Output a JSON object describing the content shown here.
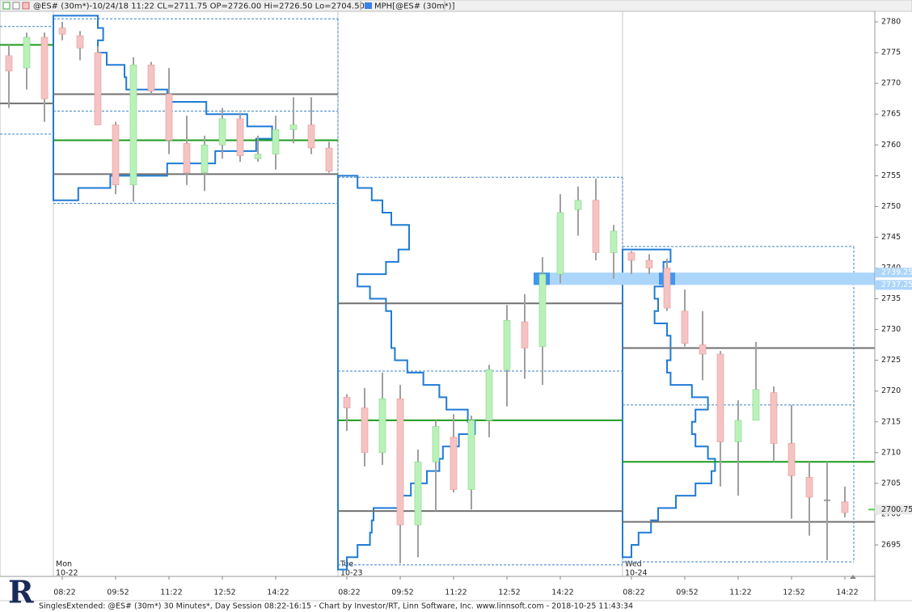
{
  "logo": "R",
  "chart_data": {
    "type": "candlestick",
    "title": "@ES# (30m*)-10/24/18 11:22 CL=2711.75 OP=2726.00 Hi=2726.50 Lo=2704.50",
    "legend": "MPH[@ES# (30m*)]",
    "legend_color": "#3c82e6",
    "footer": "SinglesExtended: @ES# (30m*) 30 Minutes*, Day Session 08:22-16:15 - Chart by Investor/RT, Linn Software, Inc. www.linnsoft.com - 2018-10-25 11:43:34",
    "ylim": [
      2689.88,
      2781.71
    ],
    "yticks": [
      2695,
      2700,
      2705,
      2710,
      2715,
      2720,
      2725,
      2730,
      2735,
      2740,
      2745,
      2750,
      2755,
      2760,
      2765,
      2770,
      2775,
      2780
    ],
    "up_color": "#b9f2b9",
    "down_color": "#f6c3c3",
    "wick_color": "#a0a0a0",
    "profile_color": "#1f7bd6",
    "poc_color": "#1c9a1c",
    "va_color": "#707070",
    "range_color": "#3c82c8",
    "sessions": [
      {
        "categories": [
          null,
          null,
          null
        ],
        "open": [
          2774.5,
          2772.5,
          2777.5
        ],
        "high": [
          2776.25,
          2778.25,
          2778.25
        ],
        "low": [
          2766,
          2769,
          2763.75
        ],
        "close": [
          2772,
          2777.5,
          2767.5
        ],
        "range": [
          2779.25,
          2761.75
        ],
        "poc": 2776.25,
        "val": 2766.75
      },
      {
        "day": "Mon",
        "date": "10-22",
        "categories": [
          "08:22",
          null,
          null,
          "09:52",
          null,
          null,
          "11:22",
          null,
          null,
          "12:52",
          null,
          null,
          "14:22",
          null,
          null,
          null
        ],
        "open": [
          2779,
          2777.75,
          2775,
          2763.25,
          2753.5,
          2773,
          2768.25,
          2760.25,
          2755.5,
          2760,
          2764.25,
          2757.75,
          2758.5,
          2762.5,
          2763.25,
          2759.5
        ],
        "high": [
          2780,
          2778.5,
          2776,
          2763.75,
          2774.25,
          2773.5,
          2772.5,
          2764.75,
          2761.5,
          2766,
          2765.25,
          2761.5,
          2764.75,
          2767.75,
          2767.75,
          2760.5
        ],
        "low": [
          2777,
          2773.75,
          2763.25,
          2752,
          2750.75,
          2768.25,
          2758.5,
          2753.5,
          2752.5,
          2757.75,
          2757.25,
          2757.25,
          2756,
          2760.25,
          2758.5,
          2755.5
        ],
        "close": [
          2778,
          2775.75,
          2763.25,
          2753.5,
          2773,
          2768.75,
          2760.75,
          2755.5,
          2760,
          2764.25,
          2758.25,
          2758.5,
          2762.5,
          2763.25,
          2759.5,
          2755.75
        ],
        "range": [
          2780.5,
          2750.5
        ],
        "mid": 2765.5,
        "poc": 2760.75,
        "vah": 2768.25,
        "val": 2755.25,
        "profile": {
          "prices": [
            2779,
            2777,
            2775,
            2773,
            2771,
            2769,
            2767,
            2765,
            2763,
            2761,
            2759,
            2757,
            2755,
            2753,
            2751
          ],
          "widths": [
            2.5,
            2.8,
            2.5,
            3,
            4,
            4.1,
            6.4,
            8.6,
            10.9,
            12.3,
            11.4,
            9.1,
            6.4,
            3.2,
            1.4
          ]
        }
      },
      {
        "day": "Tue",
        "date": "10-23",
        "categories": [
          "08:22",
          null,
          null,
          "09:52",
          null,
          null,
          "11:22",
          null,
          null,
          "12:52",
          null,
          null,
          "14:22",
          null,
          null,
          null
        ],
        "open": [
          2719,
          2717.25,
          2710,
          2718.75,
          2698.25,
          2708.5,
          2712.5,
          2704,
          2715.25,
          2723.5,
          2731.25,
          2727.25,
          2739,
          2749.5,
          2751,
          2742.5
        ],
        "high": [
          2719.5,
          2720.5,
          2723,
          2721,
          2710.5,
          2715.25,
          2716.25,
          2716,
          2724.25,
          2734,
          2735.75,
          2741.75,
          2752,
          2753.25,
          2754.5,
          2747
        ],
        "low": [
          2713.5,
          2707.75,
          2708,
          2692,
          2693,
          2700.5,
          2703.5,
          2700.75,
          2712.5,
          2717.5,
          2722,
          2721,
          2737.5,
          2745.25,
          2741.25,
          2738.25
        ],
        "close": [
          2717.25,
          2710,
          2718.75,
          2698.25,
          2708.5,
          2714.25,
          2704,
          2715.25,
          2723.5,
          2731.5,
          2727,
          2739,
          2749,
          2751,
          2742.5,
          2746
        ],
        "range": [
          2754.75,
          2691.75
        ],
        "mid": 2723.25,
        "poc": 2715.25,
        "vah": 2734.25,
        "val": 2700.5,
        "profile": {
          "prices": [
            2753,
            2751,
            2749,
            2747,
            2745,
            2743,
            2741,
            2739,
            2737,
            2735,
            2733,
            2731,
            2729,
            2727,
            2725,
            2723,
            2721,
            2719,
            2717,
            2715,
            2713,
            2711,
            2709,
            2707,
            2705,
            2703,
            2701,
            2699,
            2697,
            2695,
            2693,
            2691
          ],
          "widths": [
            1.1,
            1.9,
            2.5,
            3,
            4,
            4,
            3.4,
            2.7,
            1.1,
            1.8,
            2.7,
            3,
            3,
            3,
            3.2,
            3.9,
            4.8,
            5.7,
            6.1,
            7.3,
            7.7,
            6.8,
            5.9,
            5.7,
            5,
            4.1,
            3.6,
            2,
            1.9,
            1.8,
            1.1,
            0.5
          ]
        }
      },
      {
        "day": "Wed",
        "date": "10-24",
        "categories": [
          "08:22",
          null,
          null,
          "09:52",
          null,
          null,
          "11:22",
          null,
          null,
          "12:52",
          null,
          null,
          "14:22"
        ],
        "open": [
          2742.5,
          2741.25,
          2740,
          2733,
          2727.5,
          2726,
          2711.75,
          2715.25,
          2719.75,
          2711.5,
          2706,
          2702.25,
          2702
        ],
        "high": [
          2742.75,
          2742.25,
          2741.5,
          2736.5,
          2733,
          2726.5,
          2718.5,
          2728,
          2720.75,
          2717.75,
          2708.5,
          2708.5,
          2704.5
        ],
        "low": [
          2739,
          2739,
          2733,
          2727.25,
          2721.75,
          2704.5,
          2703,
          2715.25,
          2708.5,
          2699.25,
          2696.5,
          2692.5,
          2699.5
        ],
        "close": [
          2741.25,
          2740,
          2733.5,
          2727.75,
          2726,
          2711.75,
          2715.25,
          2720.25,
          2711.5,
          2706.25,
          2702.75,
          2702.25,
          2700.25
        ],
        "range": [
          2743.5,
          2692.25
        ],
        "mid": 2717.75,
        "poc": 2708.5,
        "vah": 2727,
        "val": 2698.75,
        "profile": {
          "prices": [
            2741,
            2739,
            2737,
            2735,
            2733,
            2731,
            2729,
            2727,
            2725,
            2723,
            2721,
            2719,
            2717,
            2715,
            2713,
            2711,
            2709,
            2707,
            2705,
            2703,
            2701,
            2699,
            2697,
            2695,
            2693
          ],
          "widths": [
            2.7,
            2.3,
            2.3,
            1.8,
            2,
            1.8,
            2.5,
            2.7,
            2.7,
            2.5,
            2.7,
            3.9,
            4.8,
            4.1,
            3.9,
            4.1,
            4.8,
            5.2,
            5,
            4.1,
            3,
            2,
            1.6,
            0.9,
            0.5
          ]
        }
      }
    ],
    "singles": {
      "high": 2739.25,
      "low": 2737.25,
      "color": "#acd5fb",
      "mark_color": "#3f95ef"
    },
    "last": 2700.75
  }
}
